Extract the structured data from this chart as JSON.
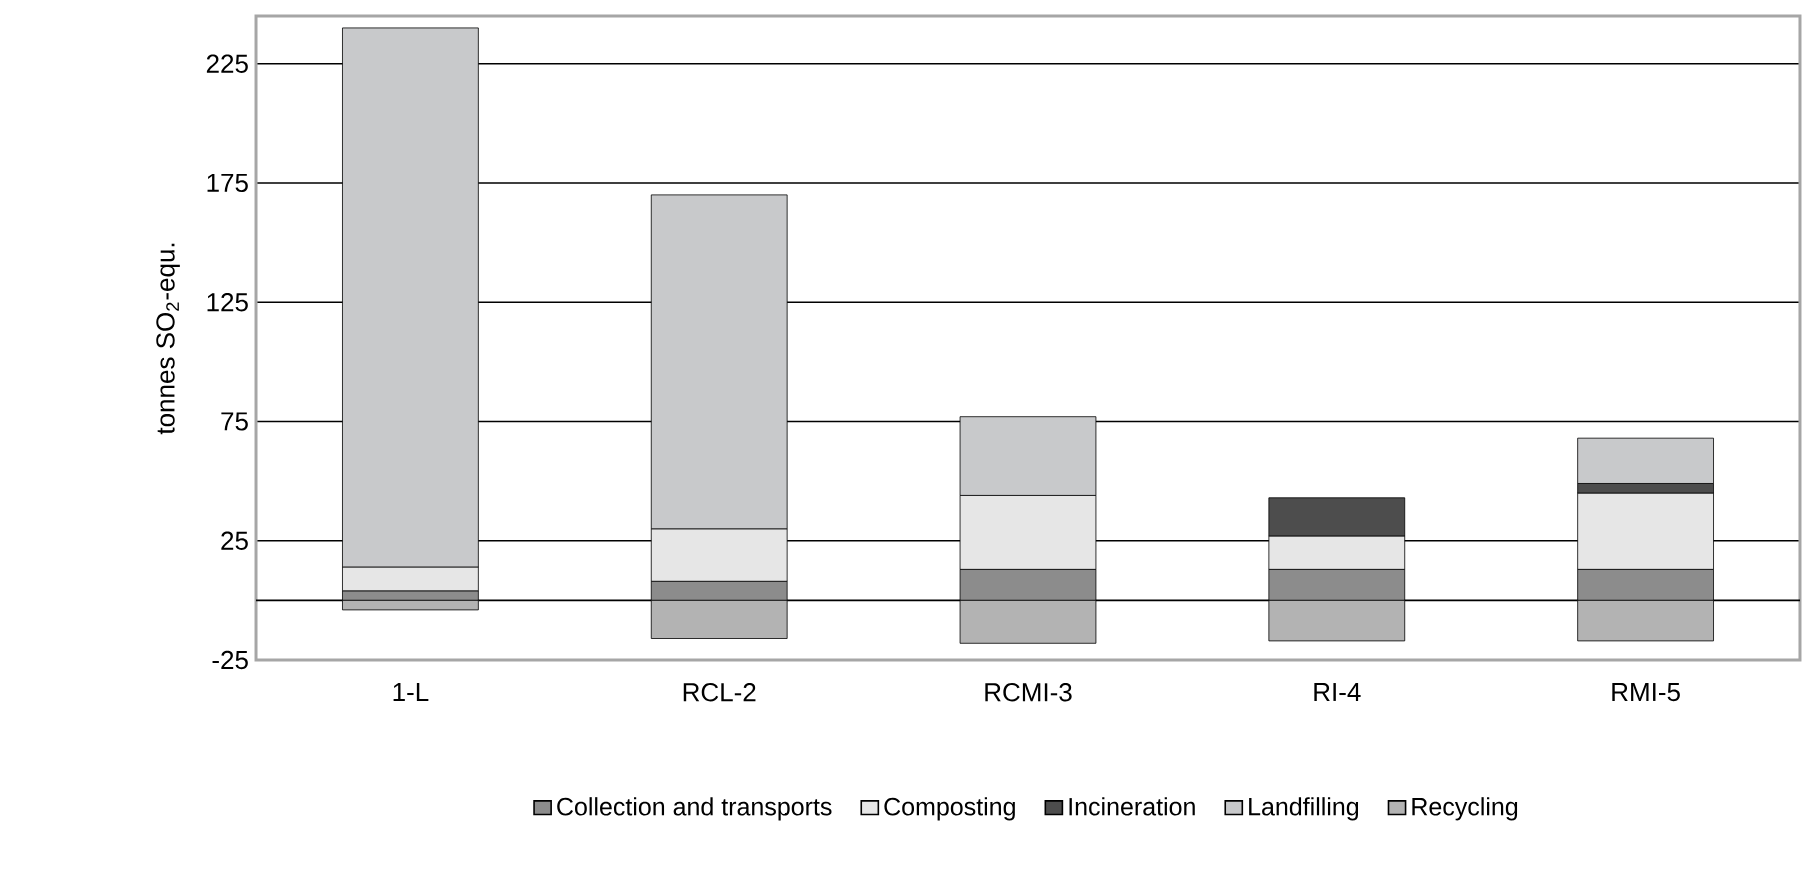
{
  "chart_data": {
    "type": "bar",
    "stacked": true,
    "ylabel": "tonnes SO$_{2}$-equ.",
    "categories": [
      "1-L",
      "RCL-2",
      "RCMI-3",
      "RI-4",
      "RMI-5"
    ],
    "series": [
      {
        "name": "Collection and transports",
        "color": "#8c8c8c",
        "values": [
          4,
          8,
          13,
          13,
          13
        ]
      },
      {
        "name": "Composting",
        "color": "#e6e6e6",
        "values": [
          10,
          22,
          31,
          14,
          32
        ]
      },
      {
        "name": "Incineration",
        "color": "#4d4d4d",
        "values": [
          0,
          0,
          0,
          16,
          4
        ]
      },
      {
        "name": "Landfilling",
        "color": "#c8c9cb",
        "values": [
          226,
          140,
          33,
          0,
          19
        ]
      },
      {
        "name": "Recycling",
        "color": "#b3b3b3",
        "values": [
          -4,
          -16,
          -18,
          -17,
          -17
        ]
      }
    ],
    "ylim": [
      -25,
      245
    ],
    "yticks": [
      -25,
      25,
      75,
      125,
      175,
      225
    ],
    "grid": "y",
    "legend": "bottom"
  }
}
